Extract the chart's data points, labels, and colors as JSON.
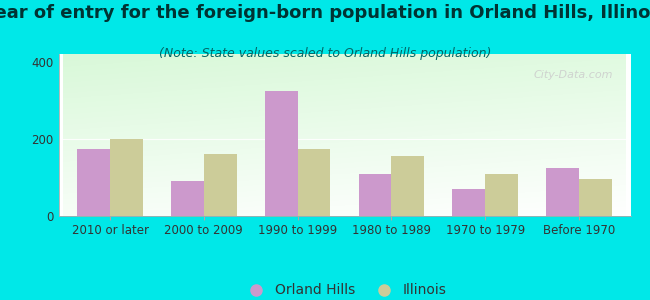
{
  "categories": [
    "2010 or later",
    "2000 to 2009",
    "1990 to 1999",
    "1980 to 1989",
    "1970 to 1979",
    "Before 1970"
  ],
  "orland_hills": [
    175,
    90,
    325,
    110,
    70,
    125
  ],
  "illinois": [
    200,
    160,
    175,
    155,
    110,
    95
  ],
  "orland_hills_color": "#cc99cc",
  "illinois_color": "#cccc99",
  "title": "Year of entry for the foreign-born population in Orland Hills, Illinois",
  "subtitle": "(Note: State values scaled to Orland Hills population)",
  "legend_orland": "Orland Hills",
  "legend_illinois": "Illinois",
  "ylim": [
    0,
    420
  ],
  "yticks": [
    0,
    200,
    400
  ],
  "background_color": "#00e8e8",
  "bar_width": 0.35,
  "title_fontsize": 13,
  "subtitle_fontsize": 9,
  "tick_fontsize": 8.5,
  "legend_fontsize": 10
}
